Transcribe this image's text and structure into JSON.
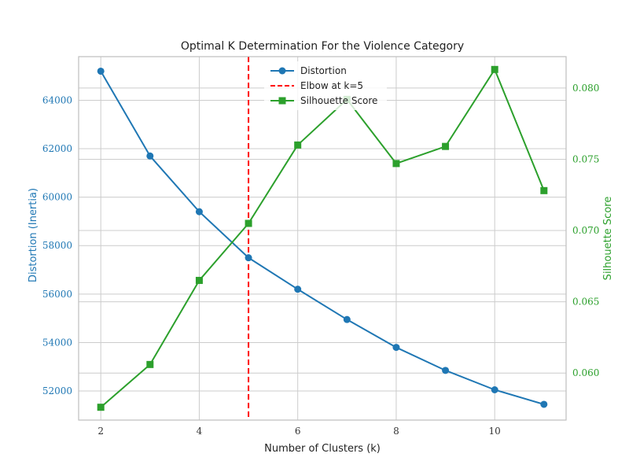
{
  "colors": {
    "distortion": "#1f77b4",
    "silhouette": "#2ca02c",
    "elbow": "#ff0000",
    "grid": "#cccccc",
    "frame": "#bfbfbf"
  },
  "chart_data": {
    "type": "line",
    "title": "Optimal K Determination For the Violence Category",
    "xlabel": "Number of Clusters (k)",
    "ylabel_left": "Distortion (Inertia)",
    "ylabel_right": "Silhouette Score",
    "x": [
      2,
      3,
      4,
      5,
      6,
      7,
      8,
      9,
      10,
      11
    ],
    "xlim": [
      1.55,
      11.45
    ],
    "xticks": [
      2,
      4,
      6,
      8,
      10
    ],
    "ylim_left": [
      50800,
      65800
    ],
    "yticks_left": [
      52000,
      54000,
      56000,
      58000,
      60000,
      62000,
      64000
    ],
    "ylim_right": [
      0.0567,
      0.0822
    ],
    "yticks_right": [
      0.06,
      0.065,
      0.07,
      0.075,
      0.08
    ],
    "yticks_right_labels": [
      "0.060",
      "0.065",
      "0.070",
      "0.075",
      "0.080"
    ],
    "grid": true,
    "legend_position": "top-center",
    "series": [
      {
        "name": "Distortion",
        "axis": "left",
        "marker": "circle",
        "values": [
          65200,
          61700,
          59400,
          57500,
          56200,
          54950,
          53800,
          52850,
          52050,
          51450
        ]
      },
      {
        "name": "Silhouette Score",
        "axis": "right",
        "marker": "square",
        "values": [
          0.0576,
          0.0606,
          0.0665,
          0.0705,
          0.076,
          0.0792,
          0.0747,
          0.0759,
          0.0813,
          0.0728
        ]
      }
    ],
    "annotations": [
      {
        "type": "vline",
        "x": 5,
        "label": "Elbow at k=5",
        "style": "dashed"
      }
    ]
  }
}
